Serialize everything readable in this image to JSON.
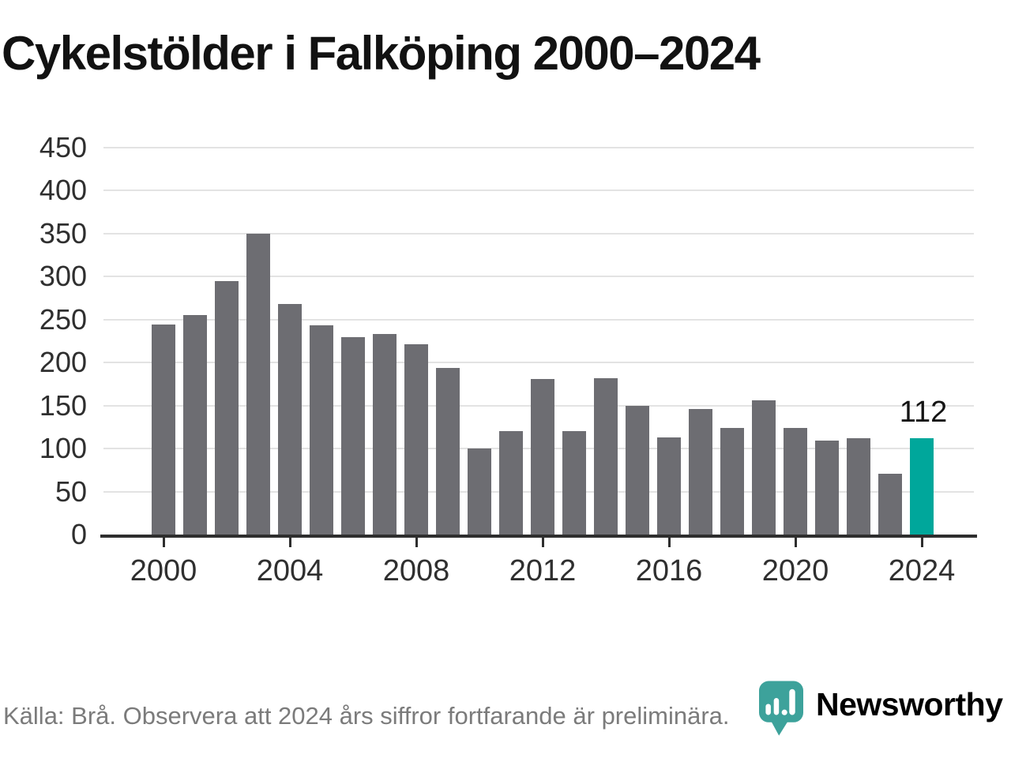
{
  "title": "Cykelstölder i Falköping 2000–2024",
  "chart_data": {
    "type": "bar",
    "x": [
      2000,
      2001,
      2002,
      2003,
      2004,
      2005,
      2006,
      2007,
      2008,
      2009,
      2010,
      2011,
      2012,
      2013,
      2014,
      2015,
      2016,
      2017,
      2018,
      2019,
      2020,
      2021,
      2022,
      2023,
      2024
    ],
    "values": [
      244,
      255,
      295,
      350,
      268,
      243,
      230,
      233,
      221,
      194,
      100,
      120,
      181,
      120,
      182,
      150,
      113,
      146,
      124,
      156,
      124,
      109,
      112,
      71,
      112
    ],
    "title": "Cykelstölder i Falköping 2000–2024",
    "xlabel": "",
    "ylabel": "",
    "ylim": [
      0,
      450
    ],
    "ytick_step": 50,
    "yticks": [
      0,
      50,
      100,
      150,
      200,
      250,
      300,
      350,
      400,
      450
    ],
    "xticks": [
      2000,
      2004,
      2008,
      2012,
      2016,
      2020,
      2024
    ],
    "grid": true,
    "legend": "none",
    "highlight_year": 2024,
    "highlight_label": "112",
    "bar_color": "#6d6d72",
    "highlight_color": "#00a79b",
    "gridline_color": "#e3e3e3",
    "axis_color": "#2e2e2e"
  },
  "footer": {
    "source_note": "Källa: Brå. Observera att 2024 års siffror fortfarande är preliminära."
  },
  "branding": {
    "logo_text": "Newsworthy",
    "logo_color": "#2e9c95",
    "logo_icon": "newsworthy-chart-bubble"
  }
}
